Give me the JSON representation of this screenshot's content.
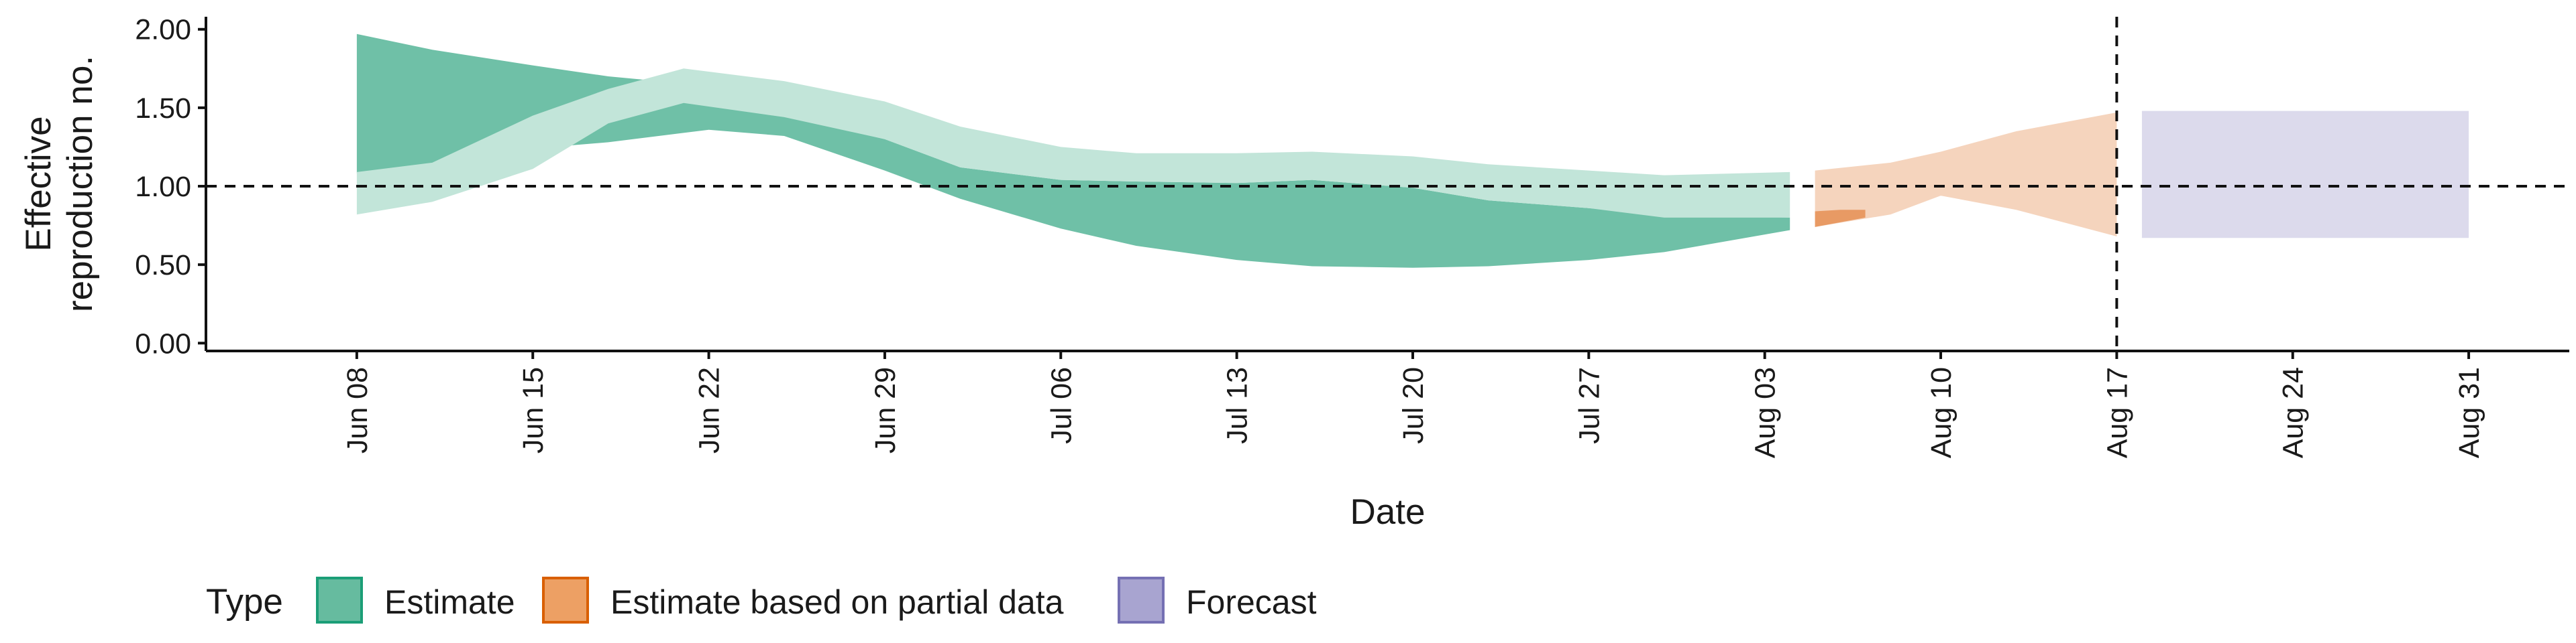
{
  "chart_data": {
    "type": "area",
    "xlabel": "Date",
    "ylabel_lines": [
      "Effective",
      "reproduction no."
    ],
    "ylim": [
      -0.05,
      2.08
    ],
    "y_ticks": [
      "0.00",
      "0.50",
      "1.00",
      "1.50",
      "2.00"
    ],
    "y_tick_values": [
      0,
      0.5,
      1.0,
      1.5,
      2.0
    ],
    "x_range": [
      "2020-06-02",
      "2020-09-04"
    ],
    "x_ticks": [
      {
        "date": "2020-06-08",
        "label": "Jun 08"
      },
      {
        "date": "2020-06-15",
        "label": "Jun 15"
      },
      {
        "date": "2020-06-22",
        "label": "Jun 22"
      },
      {
        "date": "2020-06-29",
        "label": "Jun 29"
      },
      {
        "date": "2020-07-06",
        "label": "Jul 06"
      },
      {
        "date": "2020-07-13",
        "label": "Jul 13"
      },
      {
        "date": "2020-07-20",
        "label": "Jul 20"
      },
      {
        "date": "2020-07-27",
        "label": "Jul 27"
      },
      {
        "date": "2020-08-03",
        "label": "Aug 03"
      },
      {
        "date": "2020-08-10",
        "label": "Aug 10"
      },
      {
        "date": "2020-08-17",
        "label": "Aug 17"
      },
      {
        "date": "2020-08-24",
        "label": "Aug 24"
      },
      {
        "date": "2020-08-31",
        "label": "Aug 31"
      }
    ],
    "reference_line_y": 1.0,
    "vertical_line_date": "2020-08-17",
    "grid": false,
    "legend": {
      "title": "Type",
      "position": "bottom-left",
      "entries": [
        {
          "label": "Estimate",
          "fill": "#66BB9F",
          "stroke": "#1B9E77"
        },
        {
          "label": "Estimate based on partial data",
          "fill": "#EDA064",
          "stroke": "#D95F02"
        },
        {
          "label": "Forecast",
          "fill": "#A8A4D0",
          "stroke": "#7570B3"
        }
      ]
    },
    "series": [
      {
        "type": "Estimate",
        "band": "90%",
        "color": "#6FC0A7",
        "opacity": 1,
        "points": [
          {
            "x": "2020-06-08",
            "lower": 1.08,
            "upper": 1.97
          },
          {
            "x": "2020-06-11",
            "lower": 1.14,
            "upper": 1.87
          },
          {
            "x": "2020-06-15",
            "lower": 1.24,
            "upper": 1.77
          },
          {
            "x": "2020-06-18",
            "lower": 1.28,
            "upper": 1.7
          },
          {
            "x": "2020-06-22",
            "lower": 1.36,
            "upper": 1.64
          },
          {
            "x": "2020-06-25",
            "lower": 1.32,
            "upper": 1.45
          },
          {
            "x": "2020-06-29",
            "lower": 1.1,
            "upper": 1.3
          },
          {
            "x": "2020-07-02",
            "lower": 0.92,
            "upper": 1.12
          },
          {
            "x": "2020-07-06",
            "lower": 0.73,
            "upper": 1.04
          },
          {
            "x": "2020-07-09",
            "lower": 0.62,
            "upper": 1.03
          },
          {
            "x": "2020-07-13",
            "lower": 0.53,
            "upper": 1.02
          },
          {
            "x": "2020-07-16",
            "lower": 0.49,
            "upper": 1.04
          },
          {
            "x": "2020-07-20",
            "lower": 0.48,
            "upper": 0.99
          },
          {
            "x": "2020-07-23",
            "lower": 0.49,
            "upper": 0.91
          },
          {
            "x": "2020-07-27",
            "lower": 0.53,
            "upper": 0.86
          },
          {
            "x": "2020-07-30",
            "lower": 0.58,
            "upper": 0.82
          },
          {
            "x": "2020-08-04",
            "lower": 0.72,
            "upper": 0.8
          }
        ]
      },
      {
        "type": "Estimate",
        "band": "50%",
        "color": "#C2E5D9",
        "opacity": 1,
        "points": [
          {
            "x": "2020-06-08",
            "lower": 0.82,
            "upper": 1.09
          },
          {
            "x": "2020-06-11",
            "lower": 0.9,
            "upper": 1.15
          },
          {
            "x": "2020-06-15",
            "lower": 1.11,
            "upper": 1.45
          },
          {
            "x": "2020-06-18",
            "lower": 1.4,
            "upper": 1.62
          },
          {
            "x": "2020-06-21",
            "lower": 1.53,
            "upper": 1.75
          },
          {
            "x": "2020-06-25",
            "lower": 1.44,
            "upper": 1.67
          },
          {
            "x": "2020-06-29",
            "lower": 1.3,
            "upper": 1.54
          },
          {
            "x": "2020-07-02",
            "lower": 1.12,
            "upper": 1.38
          },
          {
            "x": "2020-07-06",
            "lower": 1.04,
            "upper": 1.25
          },
          {
            "x": "2020-07-09",
            "lower": 1.03,
            "upper": 1.21
          },
          {
            "x": "2020-07-13",
            "lower": 1.02,
            "upper": 1.21
          },
          {
            "x": "2020-07-16",
            "lower": 1.04,
            "upper": 1.22
          },
          {
            "x": "2020-07-20",
            "lower": 0.99,
            "upper": 1.19
          },
          {
            "x": "2020-07-23",
            "lower": 0.91,
            "upper": 1.14
          },
          {
            "x": "2020-07-27",
            "lower": 0.86,
            "upper": 1.1
          },
          {
            "x": "2020-07-30",
            "lower": 0.8,
            "upper": 1.07
          },
          {
            "x": "2020-08-04",
            "lower": 0.8,
            "upper": 1.09
          }
        ]
      },
      {
        "type": "Estimate based on partial data",
        "band": "90%",
        "color": "#F5D4BD",
        "opacity": 1,
        "points": [
          {
            "x": "2020-08-05",
            "lower": 0.74,
            "upper": 1.1
          },
          {
            "x": "2020-08-08",
            "lower": 0.82,
            "upper": 1.15
          },
          {
            "x": "2020-08-10",
            "lower": 0.94,
            "upper": 1.22
          },
          {
            "x": "2020-08-13",
            "lower": 0.85,
            "upper": 1.35
          },
          {
            "x": "2020-08-17",
            "lower": 0.68,
            "upper": 1.47
          }
        ]
      },
      {
        "type": "Estimate based on partial data",
        "band": "50%",
        "color": "#F5D4BD",
        "opacity": 1,
        "points": [
          {
            "x": "2020-08-05",
            "lower": 0.78,
            "upper": 0.84
          },
          {
            "x": "2020-08-08",
            "lower": 0.88,
            "upper": 0.92
          },
          {
            "x": "2020-08-10",
            "lower": 0.94,
            "upper": 0.96
          },
          {
            "x": "2020-08-13",
            "lower": 0.92,
            "upper": 0.98
          },
          {
            "x": "2020-08-17",
            "lower": 0.88,
            "upper": 1.0
          }
        ]
      },
      {
        "type": "Estimate based on partial data",
        "band": "dark",
        "color": "#E89A64",
        "opacity": 1,
        "points": [
          {
            "x": "2020-08-05",
            "lower": 0.74,
            "upper": 0.84
          },
          {
            "x": "2020-08-06",
            "lower": 0.77,
            "upper": 0.85
          },
          {
            "x": "2020-08-07",
            "lower": 0.8,
            "upper": 0.85
          }
        ]
      },
      {
        "type": "Forecast",
        "band": "90%",
        "color": "#DCDAEC",
        "opacity": 1,
        "points": [
          {
            "x": "2020-08-18",
            "lower": 0.67,
            "upper": 1.48
          },
          {
            "x": "2020-08-31",
            "lower": 0.67,
            "upper": 1.48
          }
        ]
      }
    ]
  }
}
